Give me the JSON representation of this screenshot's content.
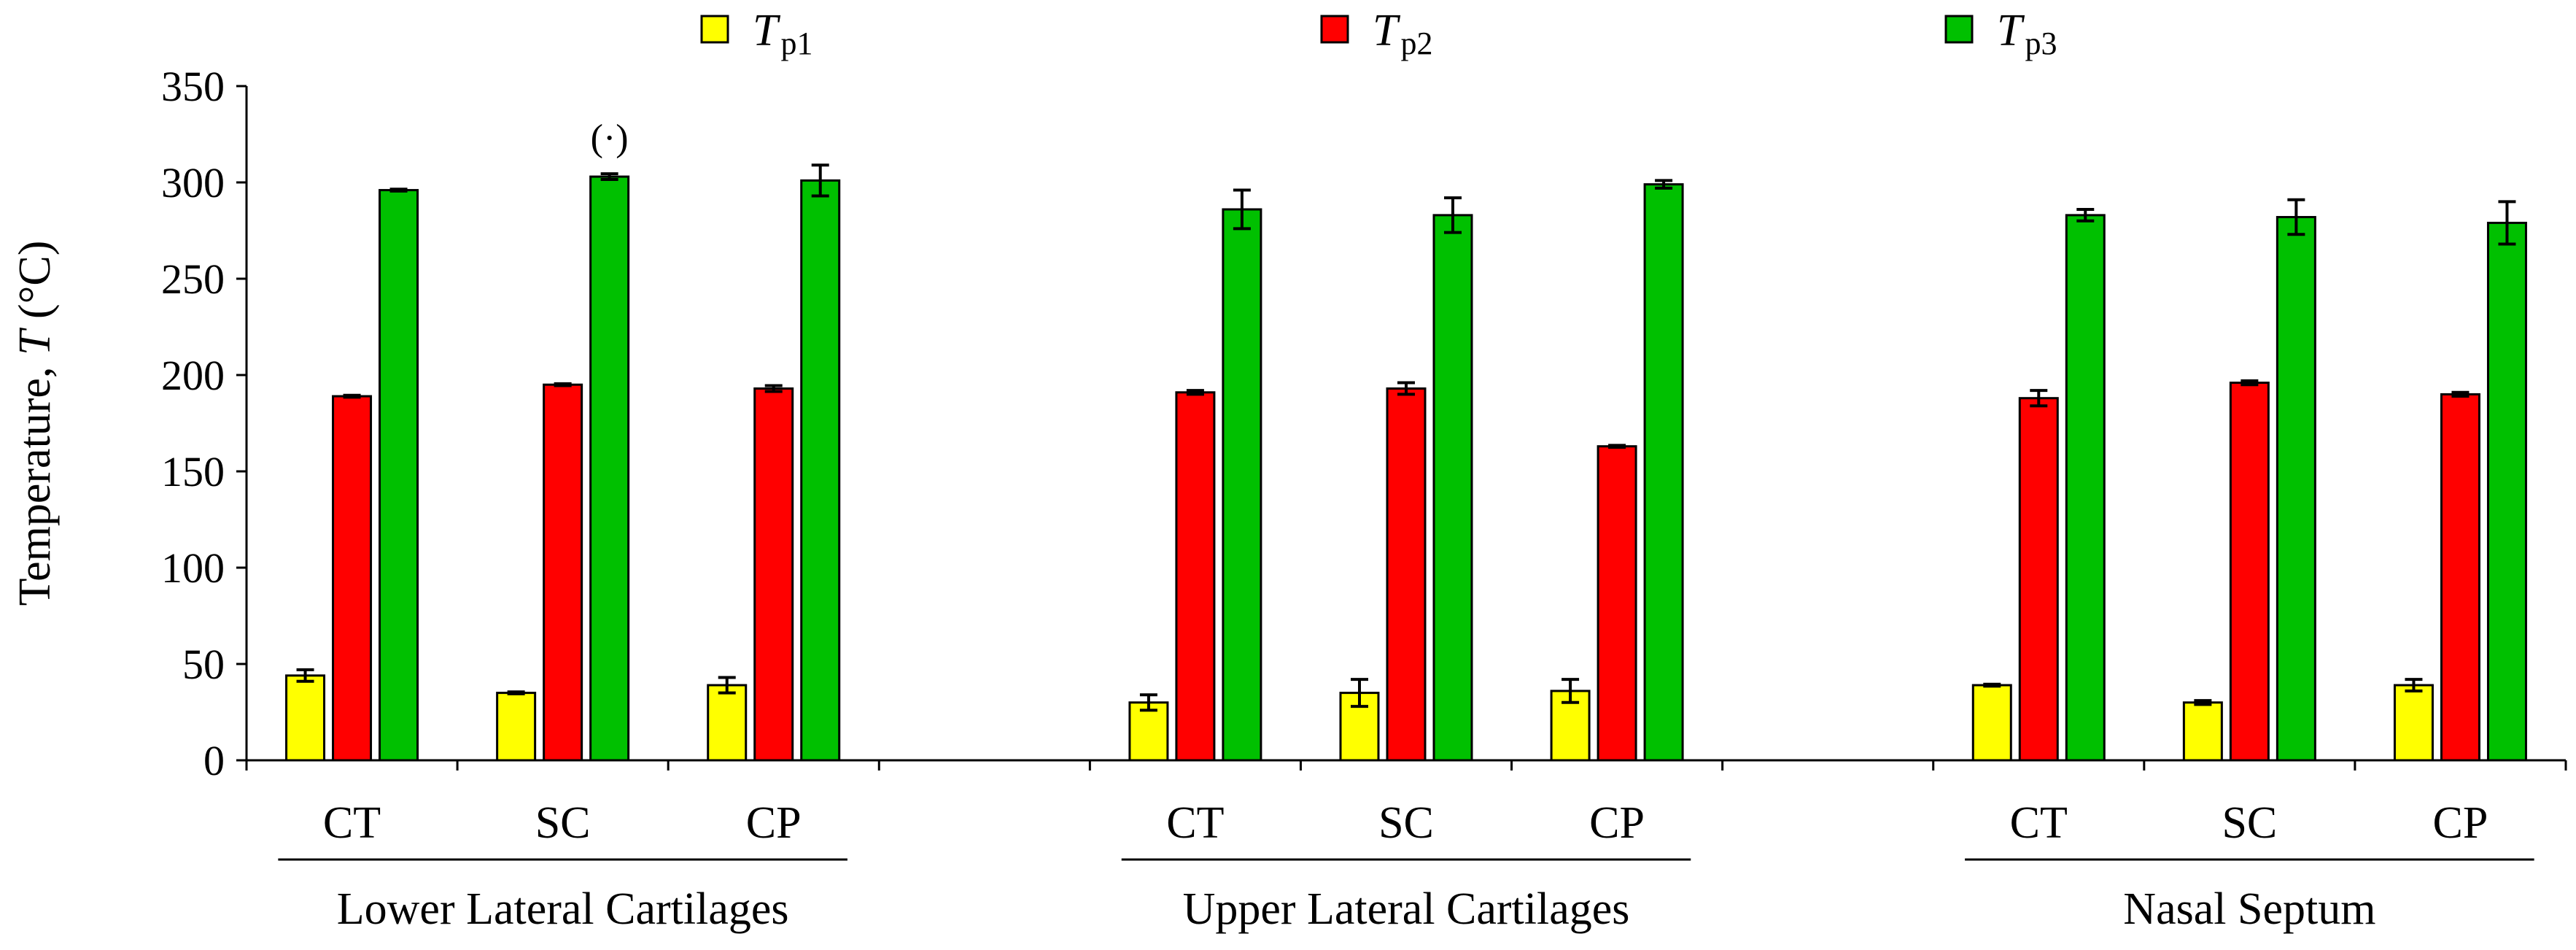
{
  "chart_data": {
    "type": "bar",
    "title": "",
    "xlabel": "",
    "ylabel": "Temperature, T  (°C)",
    "ylabel_parts": [
      "Temperature, ",
      "T",
      "  (°C)"
    ],
    "ylim": [
      0,
      350
    ],
    "yticks": [
      0,
      50,
      100,
      150,
      200,
      250,
      300,
      350
    ],
    "grid": false,
    "legend_position": "top",
    "colors": {
      "Tp1": "#ffff00",
      "Tp2": "#ff0000",
      "Tp3": "#00c000"
    },
    "series": [
      {
        "key": "Tp1",
        "name": "Tp1",
        "label_main": "T",
        "label_sub": "p1"
      },
      {
        "key": "Tp2",
        "name": "Tp2",
        "label_main": "T",
        "label_sub": "p2"
      },
      {
        "key": "Tp3",
        "name": "Tp3",
        "label_main": "T",
        "label_sub": "p3"
      }
    ],
    "groups": [
      {
        "name": "Lower Lateral Cartilages",
        "categories": [
          {
            "label": "CT",
            "values": [
              44,
              189,
              296
            ],
            "errors": [
              3,
              0.5,
              0.5
            ]
          },
          {
            "label": "SC",
            "values": [
              35,
              195,
              303
            ],
            "errors": [
              0.5,
              0.5,
              1.5
            ],
            "annotation": "(·)"
          },
          {
            "label": "CP",
            "values": [
              39,
              193,
              301
            ],
            "errors": [
              4,
              1.5,
              8
            ]
          }
        ]
      },
      {
        "name": "Upper Lateral Cartilages",
        "categories": [
          {
            "label": "CT",
            "values": [
              30,
              191,
              286
            ],
            "errors": [
              4,
              1,
              10
            ]
          },
          {
            "label": "SC",
            "values": [
              35,
              193,
              283
            ],
            "errors": [
              7,
              3,
              9
            ]
          },
          {
            "label": "CP",
            "values": [
              36,
              163,
              299
            ],
            "errors": [
              6,
              0.5,
              2
            ]
          }
        ]
      },
      {
        "name": "Nasal Septum",
        "categories": [
          {
            "label": "CT",
            "values": [
              39,
              188,
              283
            ],
            "errors": [
              0.5,
              4,
              3
            ]
          },
          {
            "label": "SC",
            "values": [
              30,
              196,
              282
            ],
            "errors": [
              1,
              1,
              9
            ]
          },
          {
            "label": "CP",
            "values": [
              39,
              190,
              279
            ],
            "errors": [
              3,
              1,
              11
            ]
          }
        ]
      }
    ]
  }
}
